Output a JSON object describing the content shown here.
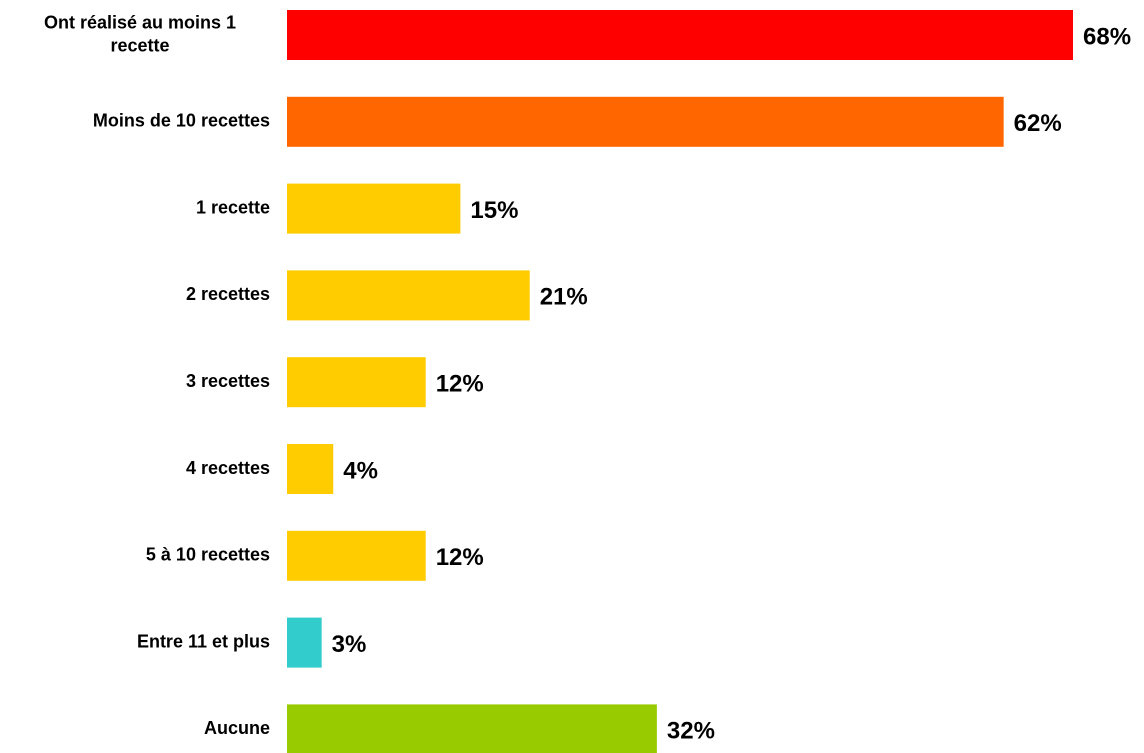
{
  "chart_data": {
    "type": "bar",
    "orientation": "horizontal",
    "categories": [
      [
        "Ont réalisé au moins 1",
        "recette"
      ],
      [
        "Moins de 10 recettes"
      ],
      [
        "1 recette"
      ],
      [
        "2 recettes"
      ],
      [
        "3 recettes"
      ],
      [
        "4  recettes"
      ],
      [
        "5 à 10 recettes"
      ],
      [
        "Entre 11 et plus"
      ],
      [
        "Aucune"
      ]
    ],
    "values": [
      68,
      62,
      15,
      21,
      12,
      4,
      12,
      3,
      32
    ],
    "value_labels": [
      "68%",
      "62%",
      "15%",
      "21%",
      "12%",
      "4%",
      "12%",
      "3%",
      "32%"
    ],
    "unit": "%",
    "colors": [
      "#ff0000",
      "#ff6600",
      "#ffcc00",
      "#ffcc00",
      "#ffcc00",
      "#ffcc00",
      "#ffcc00",
      "#33cccc",
      "#99cc00"
    ],
    "xlim": [
      0,
      68
    ],
    "grid": false,
    "legend": "none"
  }
}
